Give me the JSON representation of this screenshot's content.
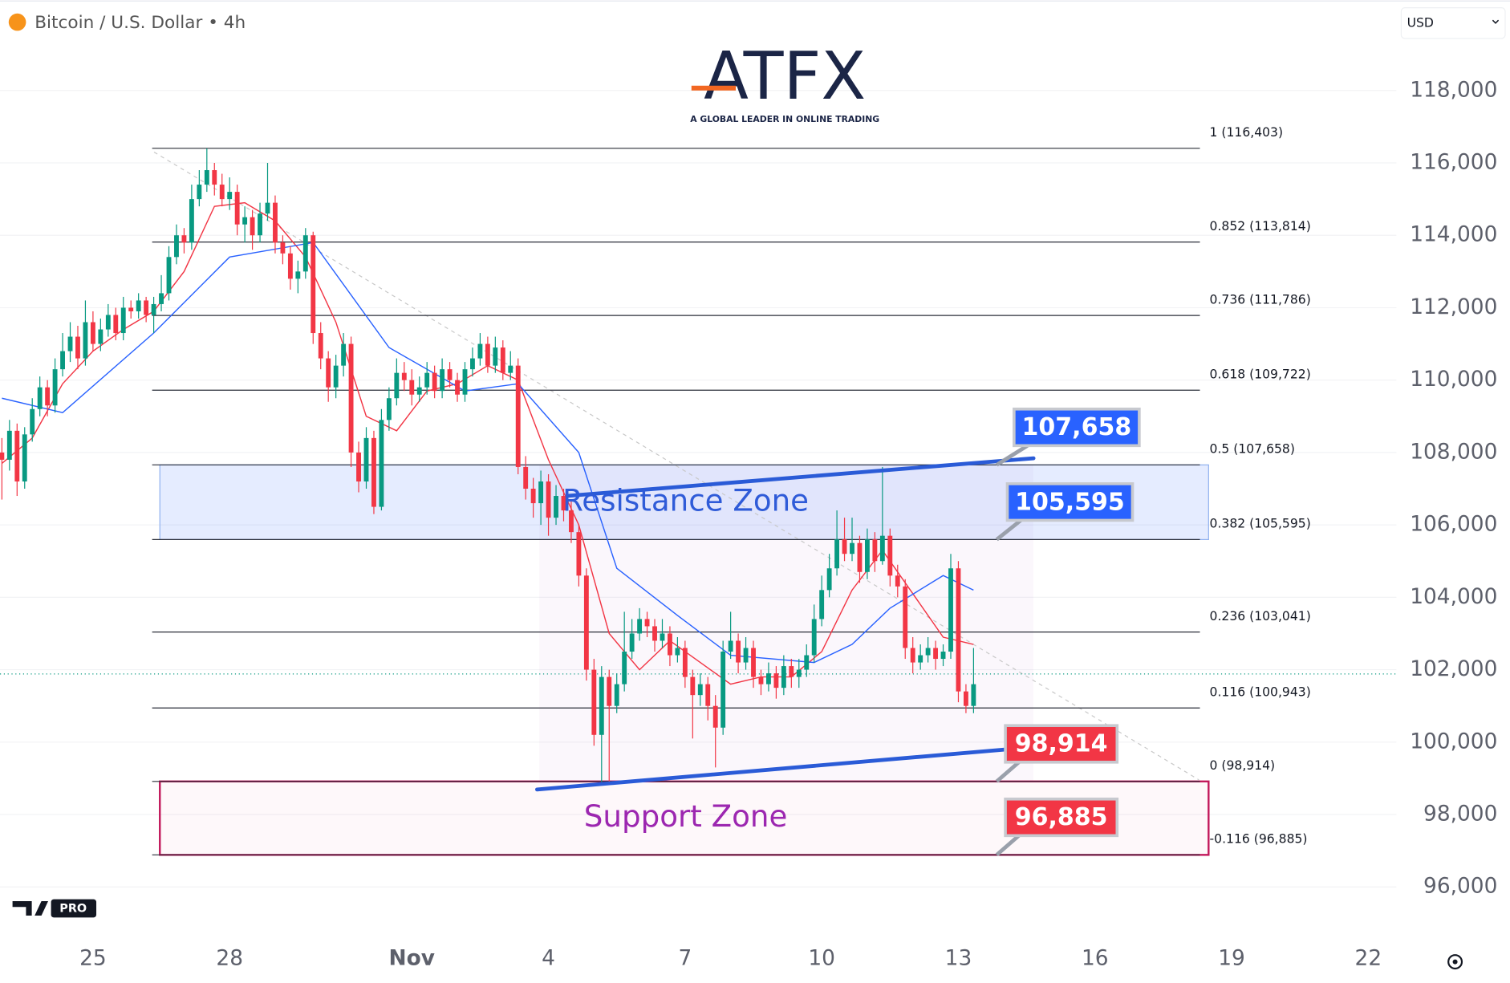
{
  "header": {
    "symbol": "Bitcoin / U.S. Dollar • 4h",
    "currency": "USD"
  },
  "logo": {
    "name": "ATFX",
    "tagline": "A GLOBAL LEADER IN ONLINE TRADING"
  },
  "badge": "PRO",
  "chart_data": {
    "type": "candlestick",
    "up_color": "#089981",
    "down_color": "#f23645",
    "candles": [
      [
        108000,
        108400,
        106700,
        107800
      ],
      [
        107800,
        108900,
        107500,
        108600
      ],
      [
        108600,
        108800,
        106800,
        107200
      ],
      [
        107200,
        108700,
        107000,
        108500
      ],
      [
        108500,
        109500,
        108300,
        109200
      ],
      [
        109200,
        110100,
        109000,
        109800
      ],
      [
        109800,
        110000,
        109000,
        109300
      ],
      [
        109300,
        110600,
        109100,
        110300
      ],
      [
        110300,
        111300,
        110100,
        110800
      ],
      [
        110800,
        111600,
        110500,
        111200
      ],
      [
        111200,
        111500,
        110300,
        110600
      ],
      [
        110600,
        112200,
        110400,
        111600
      ],
      [
        111600,
        111900,
        110800,
        111000
      ],
      [
        111000,
        111700,
        110800,
        111400
      ],
      [
        111400,
        112100,
        111200,
        111800
      ],
      [
        111800,
        112000,
        111100,
        111300
      ],
      [
        111300,
        112300,
        111100,
        112000
      ],
      [
        112000,
        112200,
        111700,
        111900
      ],
      [
        111900,
        112400,
        111700,
        112200
      ],
      [
        112200,
        112300,
        111600,
        111800
      ],
      [
        111800,
        112300,
        111300,
        112100
      ],
      [
        112100,
        112900,
        111900,
        112400
      ],
      [
        112400,
        113700,
        112200,
        113400
      ],
      [
        113400,
        114300,
        113200,
        114000
      ],
      [
        114000,
        114200,
        113500,
        113800
      ],
      [
        113800,
        115400,
        113600,
        115000
      ],
      [
        115000,
        115800,
        114800,
        115400
      ],
      [
        115400,
        116400,
        115200,
        115800
      ],
      [
        115800,
        116000,
        115100,
        115400
      ],
      [
        115400,
        115700,
        114800,
        115000
      ],
      [
        115000,
        115600,
        114700,
        115200
      ],
      [
        115200,
        115400,
        114000,
        114300
      ],
      [
        114300,
        114800,
        113800,
        114500
      ],
      [
        114500,
        114700,
        113600,
        114000
      ],
      [
        114000,
        114900,
        113800,
        114600
      ],
      [
        114600,
        116000,
        114400,
        114900
      ],
      [
        114900,
        115100,
        113500,
        113800
      ],
      [
        113800,
        114000,
        113200,
        113500
      ],
      [
        113500,
        113700,
        112500,
        112800
      ],
      [
        112800,
        113300,
        112400,
        113000
      ],
      [
        113000,
        114200,
        112800,
        114000
      ],
      [
        114000,
        114100,
        111000,
        111300
      ],
      [
        111300,
        111600,
        110300,
        110600
      ],
      [
        110600,
        110800,
        109400,
        109800
      ],
      [
        109800,
        110700,
        109500,
        110400
      ],
      [
        110400,
        111300,
        110100,
        111000
      ],
      [
        111000,
        111200,
        107600,
        108000
      ],
      [
        108000,
        108300,
        106900,
        107200
      ],
      [
        107200,
        108700,
        107000,
        108400
      ],
      [
        108400,
        108600,
        106300,
        106500
      ],
      [
        106500,
        109200,
        106400,
        108900
      ],
      [
        108900,
        109800,
        108600,
        109500
      ],
      [
        109500,
        110600,
        109300,
        110200
      ],
      [
        110200,
        110500,
        109700,
        110000
      ],
      [
        110000,
        110300,
        109300,
        109600
      ],
      [
        109600,
        110100,
        109400,
        109800
      ],
      [
        109800,
        110500,
        109600,
        110200
      ],
      [
        110200,
        110400,
        109500,
        109700
      ],
      [
        109700,
        110600,
        109500,
        110300
      ],
      [
        110300,
        110500,
        109800,
        110000
      ],
      [
        110000,
        110200,
        109400,
        109600
      ],
      [
        109600,
        110500,
        109400,
        110300
      ],
      [
        110300,
        110900,
        110100,
        110600
      ],
      [
        110600,
        111300,
        110400,
        111000
      ],
      [
        111000,
        111200,
        110200,
        110400
      ],
      [
        110400,
        111200,
        110200,
        110900
      ],
      [
        110900,
        111100,
        110000,
        110200
      ],
      [
        110200,
        110800,
        110000,
        110400
      ],
      [
        110400,
        110600,
        107400,
        107600
      ],
      [
        107600,
        107900,
        106700,
        107000
      ],
      [
        107000,
        107300,
        106200,
        106600
      ],
      [
        106600,
        107500,
        106000,
        107200
      ],
      [
        107200,
        107400,
        105700,
        106200
      ],
      [
        106200,
        107100,
        106000,
        106800
      ],
      [
        106800,
        107000,
        106100,
        106400
      ],
      [
        106400,
        106700,
        105500,
        105800
      ],
      [
        105800,
        106000,
        104300,
        104600
      ],
      [
        104600,
        104800,
        101700,
        102000
      ],
      [
        102000,
        102300,
        99900,
        100200
      ],
      [
        100200,
        102100,
        98900,
        101800
      ],
      [
        101800,
        102000,
        98900,
        101000
      ],
      [
        101000,
        101900,
        100800,
        101600
      ],
      [
        101600,
        103600,
        101400,
        102500
      ],
      [
        102500,
        103400,
        102300,
        103000
      ],
      [
        103000,
        103700,
        102800,
        103400
      ],
      [
        103400,
        103600,
        102900,
        103200
      ],
      [
        103200,
        103400,
        102500,
        102800
      ],
      [
        102800,
        103400,
        102600,
        103000
      ],
      [
        103000,
        103200,
        102100,
        102400
      ],
      [
        102400,
        102900,
        102200,
        102600
      ],
      [
        102600,
        102800,
        101500,
        101800
      ],
      [
        101800,
        102000,
        100100,
        101300
      ],
      [
        101300,
        101900,
        101000,
        101600
      ],
      [
        101600,
        101800,
        100600,
        101000
      ],
      [
        101000,
        101300,
        99300,
        100400
      ],
      [
        100400,
        102800,
        100200,
        102500
      ],
      [
        102500,
        103600,
        102300,
        102800
      ],
      [
        102800,
        103000,
        101900,
        102200
      ],
      [
        102200,
        102900,
        102000,
        102600
      ],
      [
        102600,
        102800,
        101500,
        101800
      ],
      [
        101800,
        102000,
        101300,
        101600
      ],
      [
        101600,
        102200,
        101400,
        101900
      ],
      [
        101900,
        102100,
        101200,
        101500
      ],
      [
        101500,
        102400,
        101300,
        102100
      ],
      [
        102100,
        102300,
        101500,
        101800
      ],
      [
        101800,
        102300,
        101500,
        102000
      ],
      [
        102000,
        102700,
        101800,
        102400
      ],
      [
        102400,
        103800,
        102200,
        103400
      ],
      [
        103400,
        104600,
        103200,
        104200
      ],
      [
        104200,
        105200,
        104000,
        104800
      ],
      [
        104800,
        106400,
        104600,
        105600
      ],
      [
        105600,
        106200,
        105000,
        105200
      ],
      [
        105200,
        106200,
        105000,
        105500
      ],
      [
        105500,
        105700,
        104400,
        104700
      ],
      [
        104700,
        105900,
        104500,
        105600
      ],
      [
        105600,
        105800,
        104700,
        105000
      ],
      [
        105000,
        107600,
        104900,
        105700
      ],
      [
        105700,
        105900,
        104300,
        104600
      ],
      [
        104600,
        104900,
        104000,
        104300
      ],
      [
        104300,
        104500,
        102300,
        102600
      ],
      [
        102600,
        102900,
        101900,
        102200
      ],
      [
        102200,
        102700,
        102000,
        102400
      ],
      [
        102400,
        102900,
        102200,
        102600
      ],
      [
        102600,
        102800,
        102000,
        102300
      ],
      [
        102300,
        102700,
        102100,
        102500
      ],
      [
        102500,
        105200,
        102300,
        104800
      ],
      [
        104800,
        105000,
        101100,
        101400
      ],
      [
        101400,
        101600,
        100800,
        101000
      ],
      [
        101000,
        102600,
        100800,
        101600
      ]
    ],
    "moving_averages": [
      {
        "color": "#f23645",
        "x": [
          0,
          4,
          8,
          12,
          16,
          20,
          24,
          28,
          32,
          36,
          40,
          44,
          48,
          52,
          56,
          60,
          64,
          68,
          72,
          76,
          80,
          84,
          88,
          92,
          96,
          100,
          104,
          108,
          112,
          116,
          120,
          124,
          128
        ],
        "values": [
          107700,
          108400,
          109900,
          110800,
          111400,
          111900,
          113000,
          114800,
          114900,
          114400,
          113400,
          111600,
          109000,
          108600,
          109700,
          109900,
          110400,
          110000,
          107800,
          106000,
          103000,
          102000,
          102800,
          102200,
          101600,
          101800,
          101800,
          102500,
          104200,
          105300,
          104100,
          102900,
          102700
        ]
      },
      {
        "color": "#2962ff",
        "x": [
          0,
          8,
          20,
          30,
          41,
          51,
          61,
          68,
          76,
          81,
          89,
          96,
          107,
          112,
          117,
          124,
          128
        ],
        "values": [
          109500,
          109100,
          111300,
          113400,
          113800,
          110900,
          109700,
          109900,
          108000,
          104800,
          103500,
          102400,
          102200,
          102700,
          103700,
          104600,
          104200
        ]
      }
    ],
    "fib_levels": [
      {
        "value": 116403,
        "label": "1 (116,403)"
      },
      {
        "value": 113814,
        "label": "0.852 (113,814)"
      },
      {
        "value": 111786,
        "label": "0.736 (111,786)"
      },
      {
        "value": 109722,
        "label": "0.618 (109,722)"
      },
      {
        "value": 107658,
        "label": "0.5 (107,658)"
      },
      {
        "value": 105595,
        "label": "0.382 (105,595)"
      },
      {
        "value": 103041,
        "label": "0.236 (103,041)"
      },
      {
        "value": 100943,
        "label": "0.116 (100,943)"
      },
      {
        "value": 98914,
        "label": "0 (98,914)"
      },
      {
        "value": 96885,
        "label": "-0.116 (96,885)"
      }
    ],
    "zones": [
      {
        "label": "Resistance Zone",
        "range": [
          105595,
          107658
        ],
        "color": "#2f5bd8"
      },
      {
        "label": "Support Zone",
        "range": [
          96885,
          98914
        ],
        "color": "#9c27b0"
      }
    ],
    "price_labels": [
      {
        "value": 107658,
        "label": "107,658",
        "color": "#2962ff"
      },
      {
        "value": 105595,
        "label": "105,595",
        "color": "#2962ff"
      },
      {
        "value": 98914,
        "label": "98,914",
        "color": "#f23645"
      },
      {
        "value": 96885,
        "label": "96,885",
        "color": "#f23645"
      }
    ],
    "trendlines": [
      {
        "color": "#2a5bd7",
        "x": [
          74.6,
          135.9
        ],
        "values": [
          106803,
          107840
        ]
      },
      {
        "color": "#2a5bd7",
        "x": [
          70.5,
          135.9
        ],
        "values": [
          98691,
          99862
        ]
      }
    ],
    "xlim": [
      -0.25,
      183.7
    ],
    "xticks": [
      {
        "value": 12,
        "label": "25"
      },
      {
        "value": 30,
        "label": "28"
      },
      {
        "value": 54,
        "label": "Nov"
      },
      {
        "value": 72,
        "label": "4"
      },
      {
        "value": 90,
        "label": "7"
      },
      {
        "value": 108,
        "label": "10"
      },
      {
        "value": 126,
        "label": "13"
      },
      {
        "value": 144,
        "label": "16"
      },
      {
        "value": 162,
        "label": "19"
      },
      {
        "value": 180,
        "label": "22"
      }
    ],
    "ylim": [
      94968,
      120500
    ],
    "yticks": [
      {
        "value": 96000,
        "label": "96,000"
      },
      {
        "value": 98000,
        "label": "98,000"
      },
      {
        "value": 100000,
        "label": "100,000"
      },
      {
        "value": 102000,
        "label": "102,000"
      },
      {
        "value": 104000,
        "label": "104,000"
      },
      {
        "value": 106000,
        "label": "106,000"
      },
      {
        "value": 108000,
        "label": "108,000"
      },
      {
        "value": 110000,
        "label": "110,000"
      },
      {
        "value": 112000,
        "label": "112,000"
      },
      {
        "value": 114000,
        "label": "114,000"
      },
      {
        "value": 116000,
        "label": "116,000"
      },
      {
        "value": 118000,
        "label": "118,000"
      }
    ],
    "grid": true
  }
}
